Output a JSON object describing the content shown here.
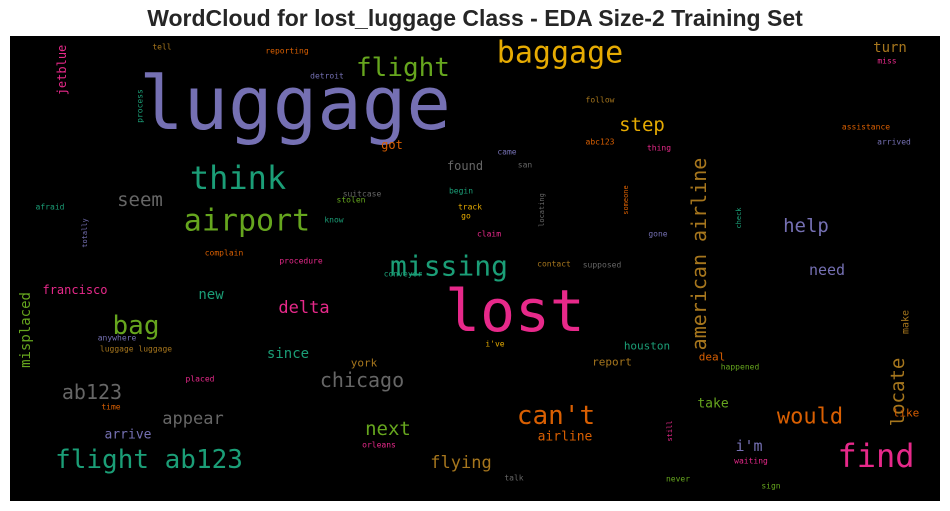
{
  "chart_data": {
    "type": "wordcloud",
    "title": "WordCloud for lost_luggage Class - EDA Size-2 Training Set",
    "background": "#000000",
    "palette": [
      "#7570b3",
      "#e7298a",
      "#d95f02",
      "#1b9e77",
      "#66a61e",
      "#e6ab02",
      "#a6761d",
      "#666666"
    ],
    "words": [
      {
        "text": "luggage",
        "color": "#7570b3",
        "vertical": false
      },
      {
        "text": "lost",
        "color": "#e7298a",
        "vertical": false
      },
      {
        "text": "baggage",
        "color": "#e6ab02",
        "vertical": false
      },
      {
        "text": "flight",
        "color": "#66a61e",
        "vertical": false
      },
      {
        "text": "think",
        "color": "#1b9e77",
        "vertical": false
      },
      {
        "text": "airport",
        "color": "#66a61e",
        "vertical": false
      },
      {
        "text": "missing",
        "color": "#1b9e77",
        "vertical": false
      },
      {
        "text": "find",
        "color": "#e7298a",
        "vertical": false
      },
      {
        "text": "flight ab123",
        "color": "#1b9e77",
        "vertical": false
      },
      {
        "text": "american airline",
        "color": "#a6761d",
        "vertical": true
      },
      {
        "text": "can't",
        "color": "#d95f02",
        "vertical": false
      },
      {
        "text": "bag",
        "color": "#66a61e",
        "vertical": false
      },
      {
        "text": "would",
        "color": "#d95f02",
        "vertical": false
      },
      {
        "text": "chicago",
        "color": "#666666",
        "vertical": false
      },
      {
        "text": "ab123",
        "color": "#666666",
        "vertical": false
      },
      {
        "text": "seem",
        "color": "#666666",
        "vertical": false
      },
      {
        "text": "step",
        "color": "#e6ab02",
        "vertical": false
      },
      {
        "text": "help",
        "color": "#7570b3",
        "vertical": false
      },
      {
        "text": "locate",
        "color": "#a6761d",
        "vertical": true
      },
      {
        "text": "next",
        "color": "#66a61e",
        "vertical": false
      },
      {
        "text": "appear",
        "color": "#666666",
        "vertical": false
      },
      {
        "text": "delta",
        "color": "#e7298a",
        "vertical": false
      },
      {
        "text": "flying",
        "color": "#a6761d",
        "vertical": false
      },
      {
        "text": "need",
        "color": "#7570b3",
        "vertical": false
      },
      {
        "text": "new",
        "color": "#1b9e77",
        "vertical": false
      },
      {
        "text": "since",
        "color": "#1b9e77",
        "vertical": false
      },
      {
        "text": "misplaced",
        "color": "#66a61e",
        "vertical": true
      },
      {
        "text": "turn",
        "color": "#a6761d",
        "vertical": false
      },
      {
        "text": "i'm",
        "color": "#7570b3",
        "vertical": false
      },
      {
        "text": "airline",
        "color": "#d95f02",
        "vertical": false
      },
      {
        "text": "arrive",
        "color": "#7570b3",
        "vertical": false
      },
      {
        "text": "got",
        "color": "#d95f02",
        "vertical": false
      },
      {
        "text": "found",
        "color": "#666666",
        "vertical": false
      },
      {
        "text": "take",
        "color": "#66a61e",
        "vertical": false
      },
      {
        "text": "francisco",
        "color": "#e7298a",
        "vertical": false
      },
      {
        "text": "jetblue",
        "color": "#e7298a",
        "vertical": true
      },
      {
        "text": "houston",
        "color": "#1b9e77",
        "vertical": false
      },
      {
        "text": "york",
        "color": "#a6761d",
        "vertical": false
      },
      {
        "text": "report",
        "color": "#a6761d",
        "vertical": false
      },
      {
        "text": "deal",
        "color": "#d95f02",
        "vertical": false
      },
      {
        "text": "like",
        "color": "#d95f02",
        "vertical": false
      },
      {
        "text": "make",
        "color": "#a6761d",
        "vertical": true
      },
      {
        "text": "tell",
        "color": "#a6761d",
        "vertical": false
      },
      {
        "text": "reporting",
        "color": "#d95f02",
        "vertical": false
      },
      {
        "text": "detroit",
        "color": "#7570b3",
        "vertical": false
      },
      {
        "text": "miss",
        "color": "#e7298a",
        "vertical": false
      },
      {
        "text": "process",
        "color": "#1b9e77",
        "vertical": true
      },
      {
        "text": "follow",
        "color": "#a6761d",
        "vertical": false
      },
      {
        "text": "assistance",
        "color": "#d95f02",
        "vertical": false
      },
      {
        "text": "abc123",
        "color": "#d95f02",
        "vertical": false
      },
      {
        "text": "thing",
        "color": "#e7298a",
        "vertical": false
      },
      {
        "text": "arrived",
        "color": "#7570b3",
        "vertical": false
      },
      {
        "text": "came",
        "color": "#7570b3",
        "vertical": false
      },
      {
        "text": "san",
        "color": "#666666",
        "vertical": false
      },
      {
        "text": "suitcase",
        "color": "#666666",
        "vertical": false
      },
      {
        "text": "begin",
        "color": "#1b9e77",
        "vertical": false
      },
      {
        "text": "someone",
        "color": "#d95f02",
        "vertical": true
      },
      {
        "text": "afraid",
        "color": "#1b9e77",
        "vertical": false
      },
      {
        "text": "stolen",
        "color": "#66a61e",
        "vertical": false
      },
      {
        "text": "track",
        "color": "#e6ab02",
        "vertical": false
      },
      {
        "text": "go",
        "color": "#e6ab02",
        "vertical": false
      },
      {
        "text": "locating",
        "color": "#666666",
        "vertical": true
      },
      {
        "text": "check",
        "color": "#1b9e77",
        "vertical": true
      },
      {
        "text": "totally",
        "color": "#7570b3",
        "vertical": true
      },
      {
        "text": "know",
        "color": "#1b9e77",
        "vertical": false
      },
      {
        "text": "claim",
        "color": "#e7298a",
        "vertical": false
      },
      {
        "text": "gone",
        "color": "#7570b3",
        "vertical": false
      },
      {
        "text": "complain",
        "color": "#d95f02",
        "vertical": false
      },
      {
        "text": "procedure",
        "color": "#e7298a",
        "vertical": false
      },
      {
        "text": "contact",
        "color": "#a6761d",
        "vertical": false
      },
      {
        "text": "supposed",
        "color": "#666666",
        "vertical": false
      },
      {
        "text": "conveyor",
        "color": "#1b9e77",
        "vertical": false
      },
      {
        "text": "anywhere",
        "color": "#7570b3",
        "vertical": false
      },
      {
        "text": "luggage luggage",
        "color": "#a6761d",
        "vertical": false
      },
      {
        "text": "i've",
        "color": "#e6ab02",
        "vertical": false
      },
      {
        "text": "happened",
        "color": "#66a61e",
        "vertical": false
      },
      {
        "text": "placed",
        "color": "#e7298a",
        "vertical": false
      },
      {
        "text": "time",
        "color": "#d95f02",
        "vertical": false
      },
      {
        "text": "still",
        "color": "#e7298a",
        "vertical": true
      },
      {
        "text": "orleans",
        "color": "#e7298a",
        "vertical": false
      },
      {
        "text": "waiting",
        "color": "#e7298a",
        "vertical": false
      },
      {
        "text": "talk",
        "color": "#666666",
        "vertical": false
      },
      {
        "text": "never",
        "color": "#66a61e",
        "vertical": false
      },
      {
        "text": "sign",
        "color": "#66a61e",
        "vertical": false
      }
    ]
  }
}
